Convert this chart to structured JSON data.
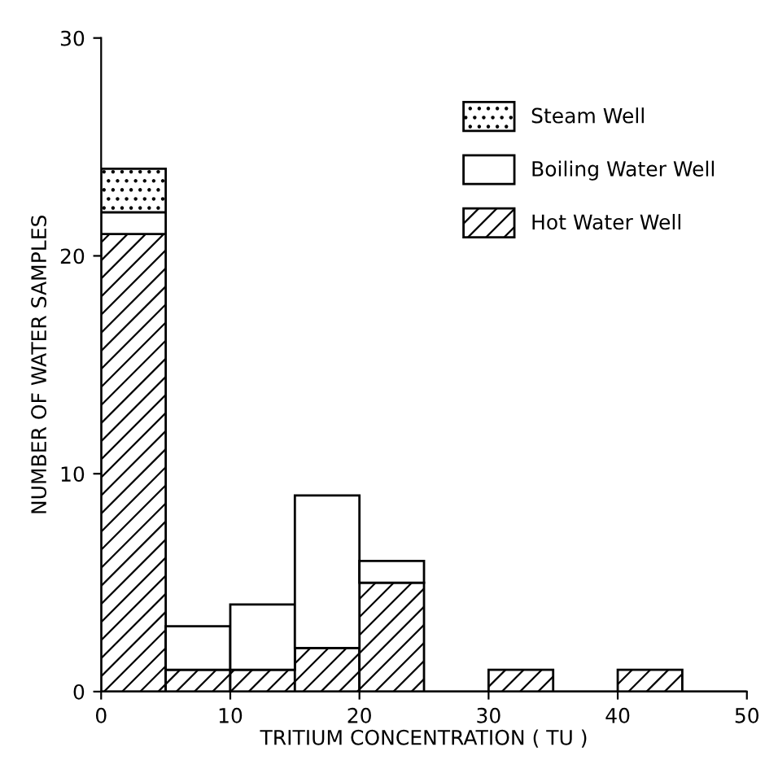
{
  "chart_data": {
    "type": "bar",
    "stacked": true,
    "xlabel": "TRITIUM CONCENTRATION ( TU )",
    "ylabel": "NUMBER OF WATER SAMPLES",
    "x": [
      2.5,
      7.5,
      12.5,
      17.5,
      22.5,
      27.5,
      32.5,
      37.5,
      42.5,
      47.5
    ],
    "series": [
      {
        "name": "Hot Water Well",
        "color": "#000000",
        "values": [
          21,
          1,
          1,
          2,
          5,
          0,
          1,
          0,
          1,
          0
        ]
      },
      {
        "name": "Boiling Water Well",
        "color": "#ffffff",
        "values": [
          1,
          2,
          3,
          7,
          1,
          0,
          0,
          0,
          0,
          0
        ]
      },
      {
        "name": "Steam Well",
        "color": "#000000",
        "values": [
          2,
          0,
          0,
          0,
          0,
          0,
          0,
          0,
          0,
          0
        ]
      }
    ],
    "xlim": [
      0,
      50
    ],
    "ylim": [
      0,
      30
    ],
    "xticks": [
      0,
      10,
      20,
      30,
      40,
      50
    ],
    "yticks": [
      0,
      10,
      20,
      30
    ],
    "grid": false,
    "legend": "top right"
  }
}
